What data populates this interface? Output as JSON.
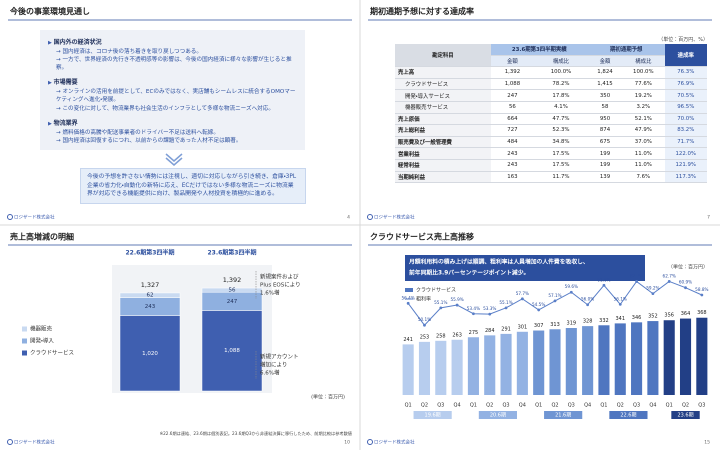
{
  "company": "ロジザード株式会社",
  "outlook": {
    "title": "今後の事業環境見通し",
    "page": "4",
    "sections": [
      {
        "heading": "国内外の経済状況",
        "lines": [
          "→ 国内経済は、コロナ後の落ち着きを取り戻しつつある。",
          "→ 一方で、世界経済の先行き不透明感等の影響は、今後の国内経済に様々な影響が生じると推察。"
        ]
      },
      {
        "heading": "市場需要",
        "lines": [
          "→ オンラインの活用を前提として、ECのみではなく、実店舗もシームレスに統合するOMOマーケティングへ進化・発展。",
          "→ この変化に対して、物流業界も社会生活のインフラとして多様な物流ニーズへ対応。"
        ]
      },
      {
        "heading": "物流業界",
        "lines": [
          "→ 燃料価格の高騰や配送事業者のドライバー不足は送料へ転嫁。",
          "→ 国内経済は回復するにつれ、以前からの課題であった人材不足は顕著。"
        ]
      }
    ],
    "summary": "今後の予想を許さない情勢には注視し、適切に対応しながら引き続き、倉庫・3PL企業の省力化・自動化の新特に応え、ECだけではない多様な物流ニーズに物流業界が対応できる機能提供に向け、製品開発や人材投資を積極的に進める。"
  },
  "achievement": {
    "title": "期初通期予想に対する達成率",
    "page": "7",
    "unit": "（単位：百万円、%）",
    "header_groups": [
      "23.6期第3四半期実績",
      "期初通期予想"
    ],
    "columns": [
      "勘定科目",
      "金額",
      "構成比",
      "金額",
      "構成比",
      "達成率"
    ],
    "rows": [
      [
        "売上高",
        "1,392",
        "100.0%",
        "1,824",
        "100.0%",
        "76.3%"
      ],
      [
        "クラウドサービス",
        "1,088",
        "78.2%",
        "1,415",
        "77.6%",
        "76.9%"
      ],
      [
        "開発・導入サービス",
        "247",
        "17.8%",
        "350",
        "19.2%",
        "70.5%"
      ],
      [
        "機器販売サービス",
        "56",
        "4.1%",
        "58",
        "3.2%",
        "96.5%"
      ],
      [
        "売上原価",
        "664",
        "47.7%",
        "950",
        "52.1%",
        "70.0%"
      ],
      [
        "売上総利益",
        "727",
        "52.3%",
        "874",
        "47.9%",
        "83.2%"
      ],
      [
        "販売費及び一般管理費",
        "484",
        "34.8%",
        "675",
        "37.0%",
        "71.7%"
      ],
      [
        "営業利益",
        "243",
        "17.5%",
        "199",
        "11.0%",
        "122.0%"
      ],
      [
        "経常利益",
        "243",
        "17.5%",
        "199",
        "11.0%",
        "121.9%"
      ],
      [
        "当期純利益",
        "163",
        "11.7%",
        "139",
        "7.6%",
        "117.3%"
      ]
    ]
  },
  "chart_data": [
    {
      "type": "stacked_bar",
      "title": "売上高増減の明細",
      "page": "10",
      "unit": "(単位：百万円)",
      "categories": [
        "22.6期第3四半期",
        "23.6期第3四半期"
      ],
      "series": [
        {
          "name": "クラウドサービス",
          "color": "#3f5fb0",
          "values": [
            1020,
            1088
          ],
          "value_labels": [
            "1,020",
            "1,088"
          ]
        },
        {
          "name": "開発・導入",
          "color": "#8fb0e0",
          "values": [
            243,
            247
          ]
        },
        {
          "name": "機器販売",
          "color": "#c9daf1",
          "values": [
            62,
            56
          ]
        }
      ],
      "totals": [
        1327,
        1392
      ],
      "total_labels": [
        "1,327",
        "1,392"
      ],
      "annotations": [
        [
          "新規案件および",
          "Plus EOSにより",
          "1.6%増"
        ],
        [
          "新規アカウント",
          "増加により",
          "6.6%増"
        ]
      ],
      "note": "※22.6期は連結、23.6期は個別表記。23.6期Q3から非連結決算に移行したため、前期比較は参考数値",
      "ylim": [
        0,
        1500
      ]
    },
    {
      "type": "bar_line",
      "title": "クラウドサービス売上高推移",
      "page": "15",
      "unit": "（単位：百万円）",
      "subtitle": [
        "月額利用料の積み上げは順調、粗利率は人員増加の人件費を吸収し、",
        "前年同期比3.9パーセンテージポイント減少。"
      ],
      "categories": [
        "Q1",
        "Q2",
        "Q3",
        "Q4",
        "Q1",
        "Q2",
        "Q3",
        "Q4",
        "Q1",
        "Q2",
        "Q3",
        "Q4",
        "Q1",
        "Q2",
        "Q3",
        "Q4",
        "Q1",
        "Q2",
        "Q3"
      ],
      "group_labels": [
        "19.6期",
        "20.6期",
        "21.6期",
        "22.6期",
        "23.6期"
      ],
      "series": [
        {
          "name": "クラウドサービス",
          "color": "#4f76c0",
          "colors": [
            "#b7cdee",
            "#b7cdee",
            "#b7cdee",
            "#b7cdee",
            "#93b2e3",
            "#93b2e3",
            "#93b2e3",
            "#93b2e3",
            "#6f95d3",
            "#6f95d3",
            "#6f95d3",
            "#6f95d3",
            "#4f76c0",
            "#4f76c0",
            "#4f76c0",
            "#4f76c0",
            "#223f86",
            "#223f86",
            "#223f86"
          ],
          "values": [
            241,
            253,
            258,
            263,
            275,
            284,
            291,
            301,
            307,
            313,
            319,
            328,
            332,
            341,
            346,
            352,
            356,
            364,
            368
          ]
        },
        {
          "name": "粗利率",
          "color": "#5a7fc8",
          "axis": "y2",
          "values": [
            56.4,
            50.1,
            55.1,
            55.9,
            53.4,
            53.3,
            55.1,
            57.7,
            54.5,
            57.1,
            59.6,
            56.0,
            61.6,
            56.1,
            62.7,
            59.2,
            62.7,
            60.9,
            58.8
          ],
          "value_labels": [
            "56.4%",
            "50.1%",
            "55.1%",
            "55.9%",
            "53.4%",
            "53.3%",
            "55.1%",
            "57.7%",
            "54.5%",
            "57.1%",
            "59.6%",
            "56.0%",
            "61.6%",
            "56.1%",
            "62.7%",
            "59.2%",
            "62.7%",
            "60.9%",
            "58.8%"
          ]
        }
      ],
      "ylim": [
        0,
        500
      ],
      "y2lim": [
        30,
        66
      ]
    }
  ]
}
